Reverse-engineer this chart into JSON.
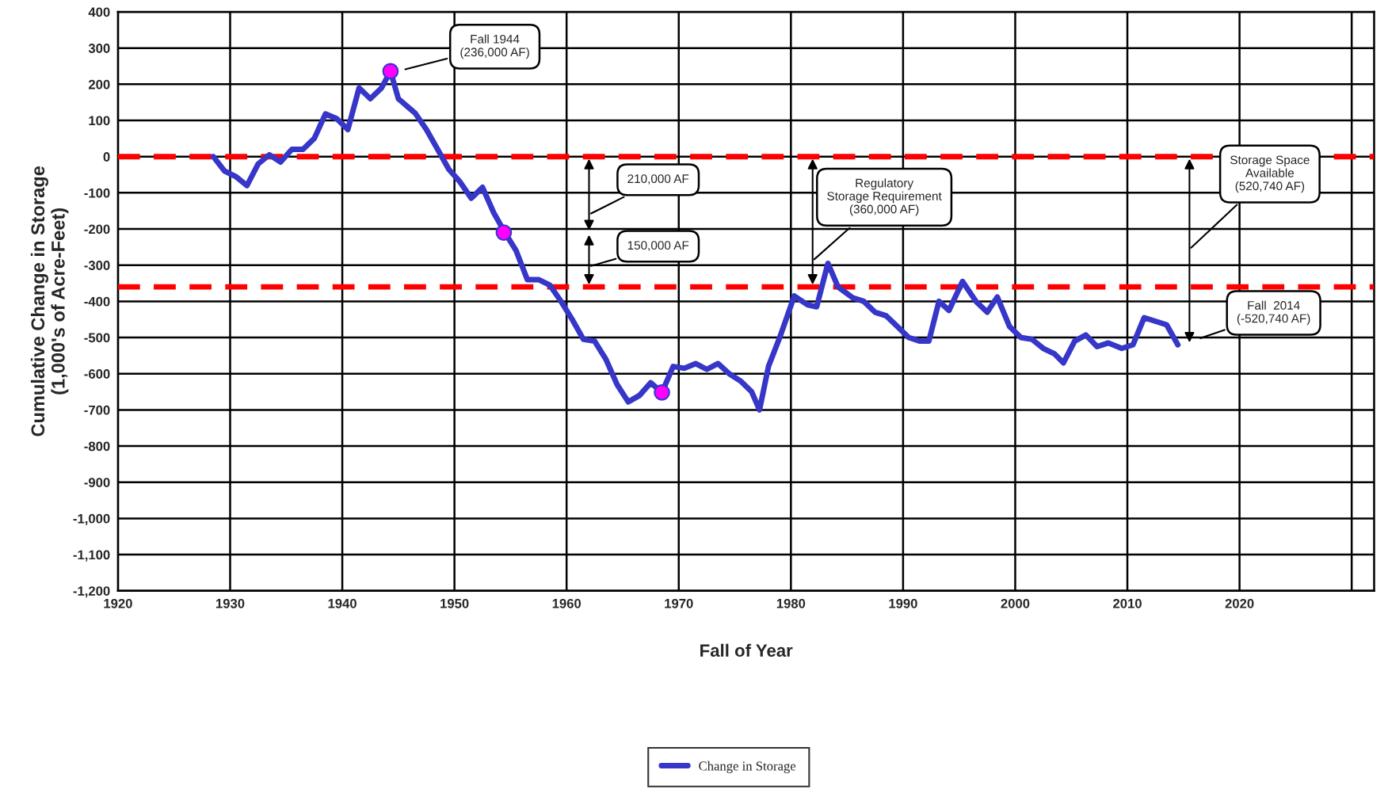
{
  "chart_data": {
    "type": "line",
    "xlabel": "Fall of Year",
    "ylabel": "Cumulative Change in Storage\n(1,000's of Acre-Feet)",
    "xlim": [
      1920,
      2032
    ],
    "xticks": [
      1920,
      1930,
      1940,
      1950,
      1960,
      1970,
      1980,
      1990,
      2000,
      2010,
      2020,
      {
        "value": 2030,
        "label": null
      }
    ],
    "ylim": [
      -1200,
      400
    ],
    "yticks": [
      400,
      300,
      200,
      100,
      0,
      -100,
      -200,
      -300,
      -400,
      -500,
      -600,
      -700,
      -800,
      -900,
      {
        "value": -1000,
        "label": "-1,000"
      },
      {
        "value": -1100,
        "label": "-1,100"
      },
      {
        "value": -1200,
        "label": "-1,200"
      }
    ],
    "grid": true,
    "legend": "bottom",
    "line_style": "solid",
    "marker": "none",
    "series": [
      {
        "name": "Change in Storage",
        "color": "#3636c8",
        "x": [
          1928.5,
          1929.5,
          1930.5,
          1931.5,
          1932.5,
          1933.5,
          1934.5,
          1935.5,
          1936.5,
          1937.5,
          1938.5,
          1939.5,
          1940.5,
          1941.5,
          1942.5,
          1943.5,
          1944.3,
          1945,
          1946.5,
          1947.5,
          1948.5,
          1949.5,
          1950.5,
          1951.5,
          1952.5,
          1953.5,
          1954.5,
          1955.5,
          1956.5,
          1957.5,
          1958.5,
          1959.5,
          1960.5,
          1961.5,
          1962.5,
          1963.5,
          1964.5,
          1965.5,
          1966.5,
          1967.5,
          1968.5,
          1969.5,
          1970.5,
          1971.5,
          1972.5,
          1973.5,
          1974.5,
          1975.5,
          1976.5,
          1977.2,
          1978,
          1979,
          1980.3,
          1981.5,
          1982.3,
          1983.3,
          1984.2,
          1985.5,
          1986.5,
          1987.5,
          1988.5,
          1989.5,
          1990.5,
          1991.5,
          1992.3,
          1993.2,
          1994.1,
          1995.3,
          1996.5,
          1997.5,
          1998.4,
          1999.5,
          2000.5,
          2001.5,
          2002.5,
          2003.5,
          2004.3,
          2005.3,
          2006.3,
          2007.3,
          2008.3,
          2009.5,
          2010.5,
          2011.5,
          2012.5,
          2013.5,
          2014.5
        ],
        "values": [
          0,
          -40,
          -55,
          -80,
          -20,
          5,
          -15,
          20,
          20,
          50,
          118,
          105,
          75,
          190,
          160,
          190,
          236,
          160,
          120,
          75,
          20,
          -35,
          -70,
          -115,
          -85,
          -155,
          -210,
          -260,
          -340,
          -340,
          -355,
          -400,
          -450,
          -505,
          -510,
          -560,
          -630,
          -678,
          -660,
          -625,
          -652,
          -580,
          -585,
          -572,
          -588,
          -572,
          -600,
          -620,
          -650,
          -700,
          -580,
          -500,
          -385,
          -410,
          -415,
          -295,
          -360,
          -390,
          -400,
          -430,
          -440,
          -470,
          -500,
          -510,
          -510,
          -400,
          -425,
          -345,
          -400,
          -430,
          -388,
          -470,
          -500,
          -505,
          -530,
          -545,
          -570,
          -510,
          -493,
          -525,
          -515,
          -530,
          -520,
          -445,
          -455,
          -465,
          -520
        ]
      },
      {
        "type": "scatter",
        "marker": "circle",
        "color": "#ff00ff",
        "x": [
          1944.3,
          1954.4,
          1968.5
        ],
        "values": [
          236,
          -210,
          -652
        ]
      }
    ],
    "ref_lines": [
      {
        "axis": "y",
        "value": 0,
        "color": "#ff0000",
        "line_style": "dashed"
      },
      {
        "axis": "y",
        "value": -360,
        "color": "#ff0000",
        "line_style": "dashed"
      }
    ],
    "annotations": [
      "Fall 1944\n(236,000 AF)",
      "210,000 AF",
      "150,000 AF",
      "Regulatory\nStorage Requirement\n(360,000 AF)",
      "Storage Space\nAvailable\n(520,740 AF)",
      "Fall  2014\n(-520,740 AF)"
    ]
  }
}
